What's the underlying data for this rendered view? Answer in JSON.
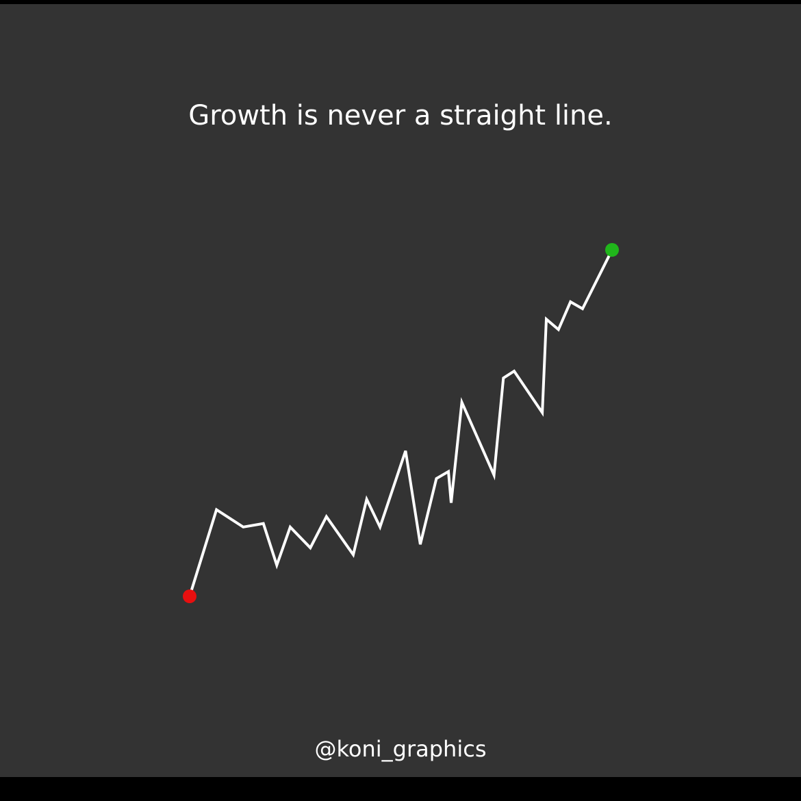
{
  "headline": "Growth is never a straight line.",
  "handle": "@koni_graphics",
  "colors": {
    "background": "#333333",
    "line": "#ffffff",
    "start_marker": "#e80f0f",
    "end_marker": "#20b61b"
  },
  "chart_data": {
    "type": "line",
    "title": "Growth is never a straight line.",
    "xlabel": "",
    "ylabel": "",
    "grid": false,
    "legend": "none",
    "xlim": [
      0,
      30
    ],
    "ylim": [
      0,
      100
    ],
    "series": [
      {
        "x": [
          0,
          2,
          4,
          5.5,
          6.5,
          7.5,
          9,
          10.2,
          12.2,
          13.2,
          14.2,
          16.1,
          17.2,
          18.4,
          19.3,
          19.5,
          20.3,
          22.7,
          23.4,
          24.2,
          26.3,
          26.6,
          27.5,
          28.4,
          29.3,
          31.5
        ],
        "y": [
          0,
          25,
          20,
          21,
          9,
          20,
          14,
          23,
          12,
          28,
          20,
          42,
          15,
          34,
          36,
          27,
          56,
          35,
          63,
          65,
          53,
          80,
          77,
          85,
          83,
          100
        ]
      }
    ]
  }
}
